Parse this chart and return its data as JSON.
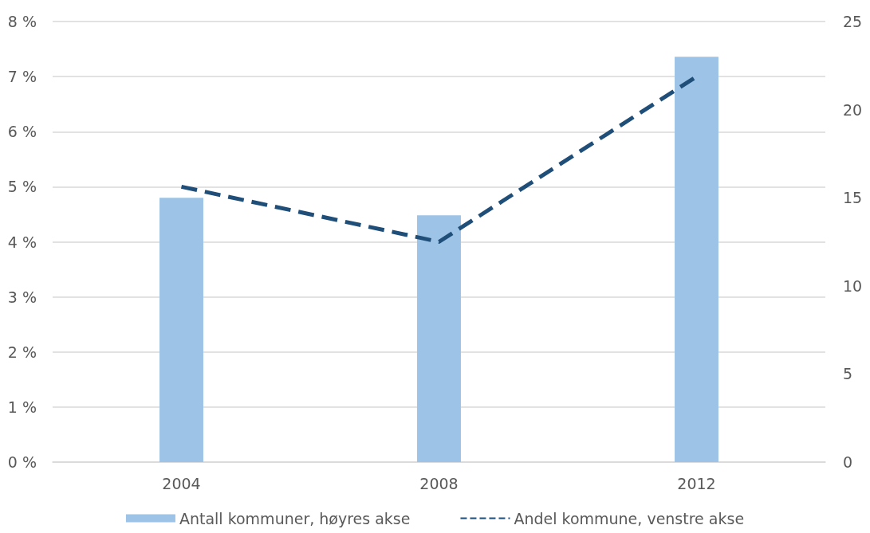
{
  "chart_data": {
    "type": "bar",
    "categories": [
      "2004",
      "2008",
      "2012"
    ],
    "series": [
      {
        "name": "Antall kommuner, høyres akse",
        "axis": "y2",
        "color": "#9dc3e6",
        "values": [
          15,
          14,
          23
        ]
      },
      {
        "name": "Andel kommune, venstre akse",
        "type": "line",
        "color": "#1f4e79",
        "values": [
          5.0,
          4.0,
          7.0
        ]
      }
    ],
    "ylim": [
      0,
      8
    ],
    "yticks": [
      {
        "value": 0,
        "label": "0 %"
      },
      {
        "value": 1,
        "label": "1 %"
      },
      {
        "value": 2,
        "label": "2 %"
      },
      {
        "value": 3,
        "label": "3 %"
      },
      {
        "value": 4,
        "label": "4 %"
      },
      {
        "value": 5,
        "label": "5 %"
      },
      {
        "value": 6,
        "label": "6 %"
      },
      {
        "value": 7,
        "label": "7 %"
      },
      {
        "value": 8,
        "label": "8 %"
      }
    ],
    "y2lim": [
      0,
      25
    ],
    "y2ticks": [
      0,
      5,
      10,
      15,
      20,
      25
    ],
    "grid": "y",
    "legend": "bottom",
    "marker": "none",
    "line_style": "dashed"
  }
}
